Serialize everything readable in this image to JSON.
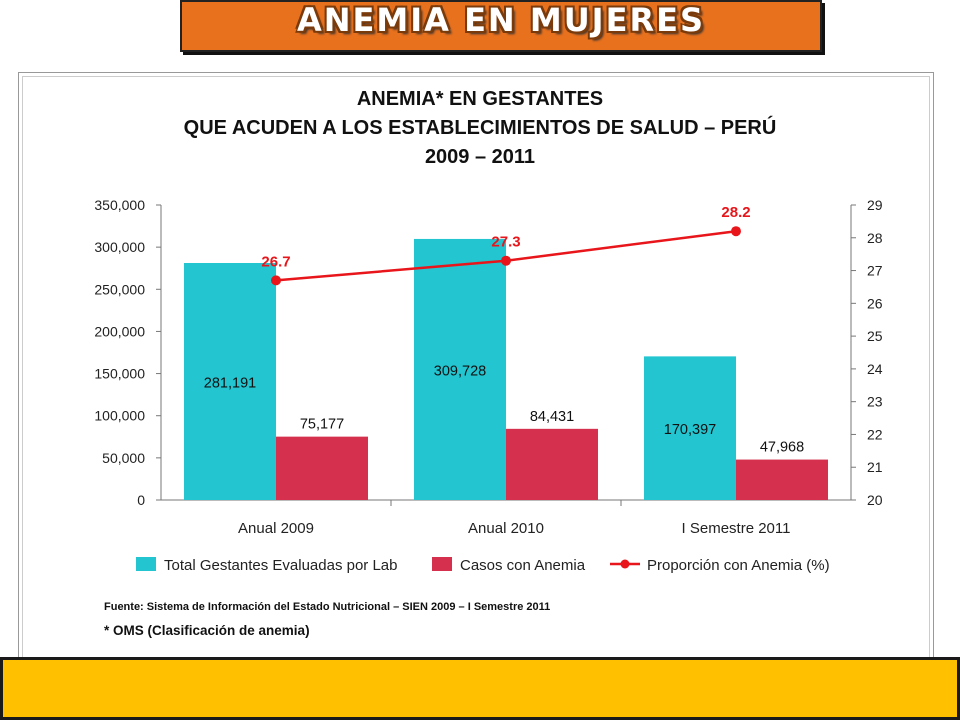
{
  "header": {
    "banner_title": "ANEMIA EN MUJERES"
  },
  "chart_data": {
    "type": "bar",
    "title": "ANEMIA* EN GESTANTES",
    "subtitle_lines": [
      "QUE ACUDEN A LOS ESTABLECIMIENTOS DE SALUD – PERÚ",
      "2009 – 2011"
    ],
    "categories": [
      "Anual 2009",
      "Anual 2010",
      "I Semestre 2011"
    ],
    "series": [
      {
        "name": "Total Gestantes Evaluadas por Lab",
        "type": "bar",
        "axis": "left",
        "color": "#22c5d0",
        "values": [
          281191,
          309728,
          170397
        ],
        "labels": [
          "281,191",
          "309,728",
          "170,397"
        ]
      },
      {
        "name": "Casos con Anemia",
        "type": "bar",
        "axis": "left",
        "color": "#d5304e",
        "values": [
          75177,
          84431,
          47968
        ],
        "labels": [
          "75,177",
          "84,431",
          "47,968"
        ]
      },
      {
        "name": "Proporción con Anemia (%)",
        "type": "line",
        "axis": "right",
        "color": "#e8161b",
        "values": [
          26.7,
          27.3,
          28.2
        ],
        "labels": [
          "26.7",
          "27.3",
          "28.2"
        ]
      }
    ],
    "y_left": {
      "min": 0,
      "max": 350000,
      "ticks": [
        "0",
        "50,000",
        "100,000",
        "150,000",
        "200,000",
        "250,000",
        "300,000",
        "350,000"
      ]
    },
    "y_right": {
      "min": 20,
      "max": 29,
      "ticks": [
        "20",
        "21",
        "22",
        "23",
        "24",
        "25",
        "26",
        "27",
        "28",
        "29"
      ]
    },
    "grid": false,
    "legend_position": "bottom"
  },
  "notes": {
    "source": "Fuente: Sistema de Información del Estado Nutricional – SIEN 2009 – I Semestre 2011",
    "footnote": "* OMS (Clasificación de anemia)"
  }
}
